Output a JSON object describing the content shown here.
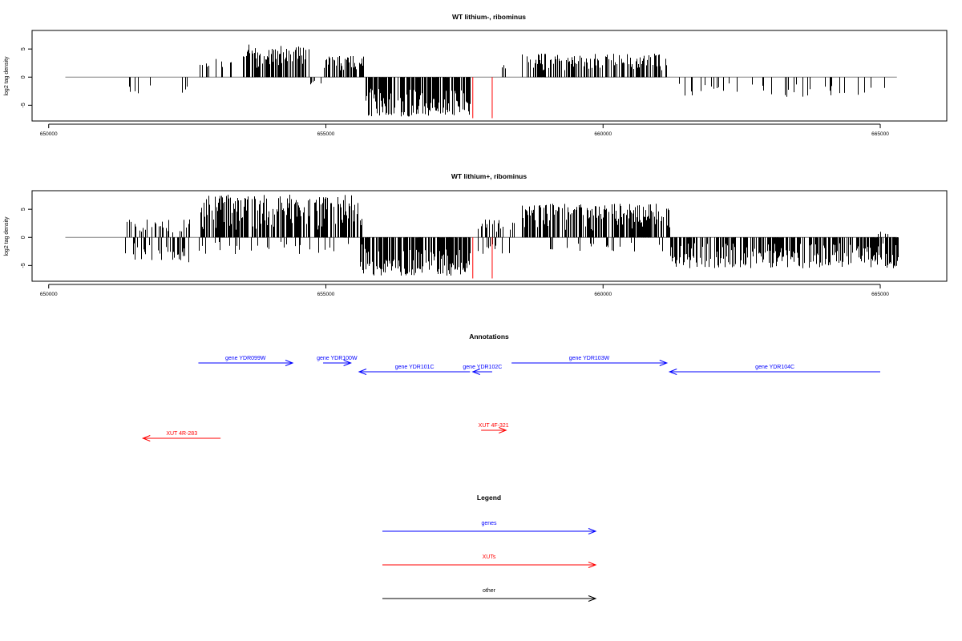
{
  "colors": {
    "axis": "#000000",
    "baseline": "#808080",
    "signal": "#000000",
    "marker": "#ff0000",
    "gene": "#0000ff",
    "xut": "#ff0000",
    "other": "#000000"
  },
  "chart_data": [
    {
      "type": "bar",
      "title": "WT lithium-, ribominus",
      "ylabel": "log2 tag density",
      "xlim": [
        649700,
        666200
      ],
      "ylim": [
        -7.8,
        8.3
      ],
      "xticks": [
        650000,
        655000,
        660000,
        665000
      ],
      "xtick_labels": [
        "650000",
        "655000",
        "660000",
        "665000"
      ],
      "yticks": [
        -5,
        0,
        5
      ],
      "ytick_labels": [
        "-5",
        "0",
        "5"
      ],
      "baseline_range": [
        650300,
        665300
      ],
      "markers": [
        {
          "x": 657650,
          "y": -7.3
        },
        {
          "x": 658000,
          "y": -7.3
        }
      ],
      "segments": [
        {
          "x0": 651400,
          "x1": 652000,
          "n": 5,
          "lo": -3.0,
          "hi": -1.2,
          "seed": 11
        },
        {
          "x0": 652400,
          "x1": 652650,
          "n": 3,
          "lo": -3.0,
          "hi": -0.8,
          "seed": 12
        },
        {
          "x0": 652700,
          "x1": 653300,
          "n": 12,
          "lo": 1.5,
          "hi": 3.5,
          "seed": 13
        },
        {
          "x0": 653500,
          "x1": 654700,
          "n": 110,
          "lo": 1.5,
          "hi": 5.8,
          "seed": 14
        },
        {
          "x0": 654700,
          "x1": 654950,
          "n": 5,
          "lo": -1.5,
          "hi": -0.5,
          "seed": 15
        },
        {
          "x0": 654950,
          "x1": 655700,
          "n": 55,
          "lo": 1.2,
          "hi": 3.8,
          "seed": 16
        },
        {
          "x0": 655700,
          "x1": 657600,
          "n": 170,
          "lo": -7.0,
          "hi": -2.0,
          "seed": 17
        },
        {
          "x0": 658150,
          "x1": 658350,
          "n": 3,
          "lo": 1.5,
          "hi": 2.2,
          "seed": 18
        },
        {
          "x0": 658500,
          "x1": 661150,
          "n": 160,
          "lo": 1.2,
          "hi": 4.2,
          "seed": 19
        },
        {
          "x0": 661200,
          "x1": 662300,
          "n": 14,
          "lo": -3.5,
          "hi": -1.0,
          "seed": 20
        },
        {
          "x0": 662300,
          "x1": 665300,
          "n": 24,
          "lo": -3.5,
          "hi": -1.0,
          "seed": 21
        }
      ]
    },
    {
      "type": "bar",
      "title": "WT lithium+, ribominus",
      "ylabel": "log2 tag density",
      "xlim": [
        649700,
        666200
      ],
      "ylim": [
        -7.8,
        8.3
      ],
      "xticks": [
        650000,
        655000,
        660000,
        665000
      ],
      "xtick_labels": [
        "650000",
        "655000",
        "660000",
        "665000"
      ],
      "yticks": [
        -5,
        0,
        5
      ],
      "ytick_labels": [
        "-5",
        "0",
        "5"
      ],
      "baseline_range": [
        650300,
        665300
      ],
      "markers": [
        {
          "x": 657650,
          "y": -7.3
        },
        {
          "x": 658000,
          "y": -7.3
        }
      ],
      "segments": [
        {
          "x0": 651350,
          "x1": 652600,
          "n": 30,
          "lo": 0.8,
          "hi": 3.2,
          "seed": 31
        },
        {
          "x0": 651350,
          "x1": 652600,
          "n": 34,
          "lo": -4.5,
          "hi": -1.0,
          "seed": 32
        },
        {
          "x0": 652700,
          "x1": 655650,
          "n": 260,
          "lo": 1.2,
          "hi": 7.6,
          "seed": 33
        },
        {
          "x0": 652700,
          "x1": 655650,
          "n": 30,
          "lo": -3.0,
          "hi": -0.8,
          "seed": 34
        },
        {
          "x0": 655600,
          "x1": 657600,
          "n": 200,
          "lo": -6.8,
          "hi": -2.0,
          "seed": 35
        },
        {
          "x0": 657700,
          "x1": 658500,
          "n": 18,
          "lo": 1.0,
          "hi": 3.5,
          "seed": 36
        },
        {
          "x0": 657700,
          "x1": 658500,
          "n": 10,
          "lo": -3.0,
          "hi": -1.0,
          "seed": 37
        },
        {
          "x0": 658500,
          "x1": 661200,
          "n": 230,
          "lo": 1.2,
          "hi": 6.0,
          "seed": 38
        },
        {
          "x0": 659000,
          "x1": 661200,
          "n": 20,
          "lo": -2.5,
          "hi": -0.8,
          "seed": 39
        },
        {
          "x0": 661200,
          "x1": 665350,
          "n": 330,
          "lo": -5.5,
          "hi": -1.0,
          "seed": 40
        },
        {
          "x0": 664950,
          "x1": 665150,
          "n": 4,
          "lo": 0.5,
          "hi": 1.0,
          "seed": 41
        }
      ]
    }
  ],
  "annotations": {
    "title": "Annotations",
    "genes": [
      {
        "label": "gene YDR099W",
        "start": 652700,
        "end": 654400,
        "dir": "right",
        "row": 0
      },
      {
        "label": "gene YDR100W",
        "start": 654950,
        "end": 655450,
        "dir": "right",
        "row": 0
      },
      {
        "label": "gene YDR101C",
        "start": 655600,
        "end": 657600,
        "dir": "left",
        "row": 1
      },
      {
        "label": "gene YDR102C",
        "start": 657650,
        "end": 658000,
        "dir": "left",
        "row": 1
      },
      {
        "label": "gene YDR103W",
        "start": 658350,
        "end": 661150,
        "dir": "right",
        "row": 0
      },
      {
        "label": "gene YDR104C",
        "start": 661200,
        "end": 665000,
        "dir": "left",
        "row": 1
      }
    ],
    "xuts": [
      {
        "label": "XUT 4R-283",
        "start": 651700,
        "end": 653100,
        "dir": "left",
        "row": 3
      },
      {
        "label": "XUT 4F-321",
        "start": 657800,
        "end": 658250,
        "dir": "right",
        "row": 2
      }
    ]
  },
  "legend": {
    "title": "Legend",
    "items": [
      {
        "label": "genes",
        "kind": "gene"
      },
      {
        "label": "XUTs",
        "kind": "xut"
      },
      {
        "label": "other",
        "kind": "other"
      }
    ]
  }
}
